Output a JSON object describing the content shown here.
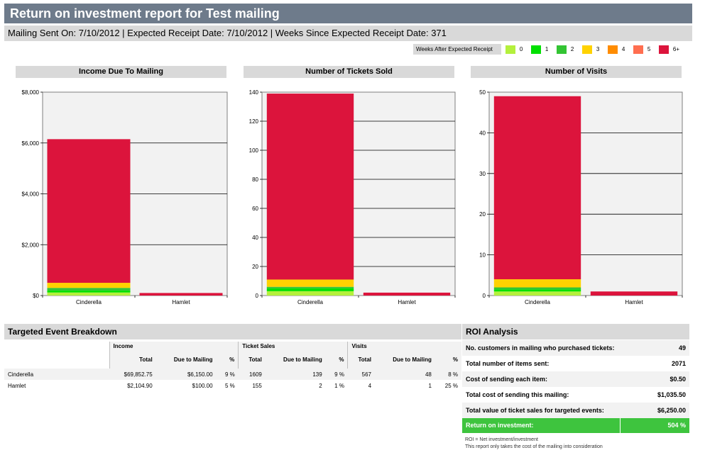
{
  "header": {
    "title": "Return on investment report for Test mailing",
    "subtitle": "Mailing Sent On: 7/10/2012 | Expected Receipt Date: 7/10/2012 | Weeks Since Expected Receipt Date: 371"
  },
  "legend": {
    "title": "Weeks After Expected Receipt",
    "items": [
      {
        "label": "0",
        "color": "#b4f03c"
      },
      {
        "label": "1",
        "color": "#00e000"
      },
      {
        "label": "2",
        "color": "#33c433"
      },
      {
        "label": "3",
        "color": "#ffd200"
      },
      {
        "label": "4",
        "color": "#ff8c00"
      },
      {
        "label": "5",
        "color": "#ff6e50"
      },
      {
        "label": "6+",
        "color": "#dc143c"
      }
    ]
  },
  "chart_data": [
    {
      "type": "bar",
      "title": "Income Due To Mailing",
      "categories": [
        "Cinderella",
        "Hamlet"
      ],
      "ylim": [
        0,
        8000
      ],
      "yticks": [
        "$0",
        "$2,000",
        "$4,000",
        "$6,000",
        "$8,000"
      ],
      "yticks_values": [
        0,
        2000,
        4000,
        6000,
        8000
      ],
      "stacked": true,
      "series": [
        {
          "name": "0",
          "values": [
            120,
            0
          ]
        },
        {
          "name": "1",
          "values": [
            80,
            0
          ]
        },
        {
          "name": "2",
          "values": [
            100,
            0
          ]
        },
        {
          "name": "3",
          "values": [
            200,
            0
          ]
        },
        {
          "name": "6+",
          "values": [
            5650,
            100
          ]
        }
      ]
    },
    {
      "type": "bar",
      "title": "Number of Tickets Sold",
      "categories": [
        "Cinderella",
        "Hamlet"
      ],
      "ylim": [
        0,
        140
      ],
      "yticks": [
        "0",
        "20",
        "40",
        "60",
        "80",
        "100",
        "120",
        "140"
      ],
      "yticks_values": [
        0,
        20,
        40,
        60,
        80,
        100,
        120,
        140
      ],
      "stacked": true,
      "series": [
        {
          "name": "0",
          "values": [
            3,
            0
          ]
        },
        {
          "name": "1",
          "values": [
            2,
            0
          ]
        },
        {
          "name": "2",
          "values": [
            1,
            0
          ]
        },
        {
          "name": "3",
          "values": [
            5,
            0
          ]
        },
        {
          "name": "6+",
          "values": [
            128,
            2
          ]
        }
      ]
    },
    {
      "type": "bar",
      "title": "Number of Visits",
      "categories": [
        "Cinderella",
        "Hamlet"
      ],
      "ylim": [
        0,
        50
      ],
      "yticks": [
        "0",
        "10",
        "20",
        "30",
        "40",
        "50"
      ],
      "yticks_values": [
        0,
        10,
        20,
        30,
        40,
        50
      ],
      "stacked": true,
      "series": [
        {
          "name": "0",
          "values": [
            1,
            0
          ]
        },
        {
          "name": "1",
          "values": [
            0.5,
            0
          ]
        },
        {
          "name": "2",
          "values": [
            0.5,
            0
          ]
        },
        {
          "name": "3",
          "values": [
            2,
            0
          ]
        },
        {
          "name": "6+",
          "values": [
            45,
            1
          ]
        }
      ]
    }
  ],
  "breakdown": {
    "title": "Targeted Event Breakdown",
    "groups": [
      "Income",
      "Ticket Sales",
      "Visits"
    ],
    "columns": [
      "Total",
      "Due to Mailing",
      "%",
      "Total",
      "Due to Mailing",
      "%",
      "Total",
      "Due to Mailing",
      "%"
    ],
    "rows": [
      {
        "name": "Cinderella",
        "cells": [
          "$69,852.75",
          "$6,150.00",
          "9 %",
          "1609",
          "139",
          "9 %",
          "567",
          "48",
          "8 %"
        ]
      },
      {
        "name": "Hamlet",
        "cells": [
          "$2,104.90",
          "$100.00",
          "5 %",
          "155",
          "2",
          "1 %",
          "4",
          "1",
          "25 %"
        ]
      }
    ]
  },
  "roi": {
    "title": "ROI Analysis",
    "rows": [
      {
        "label": "No. customers in mailing who purchased tickets:",
        "value": "49"
      },
      {
        "label": "Total number of items sent:",
        "value": "2071"
      },
      {
        "label": "Cost of sending each item:",
        "value": "$0.50"
      },
      {
        "label": "Total cost of sending this mailing:",
        "value": "$1,035.50"
      },
      {
        "label": "Total value of ticket sales for targeted events:",
        "value": "$6,250.00"
      }
    ],
    "result_label": "Return on investment:",
    "result_value": "504 %",
    "note1": "ROI = Net investment/investment",
    "note2": "This report only takes the cost of the mailing into consideration"
  }
}
